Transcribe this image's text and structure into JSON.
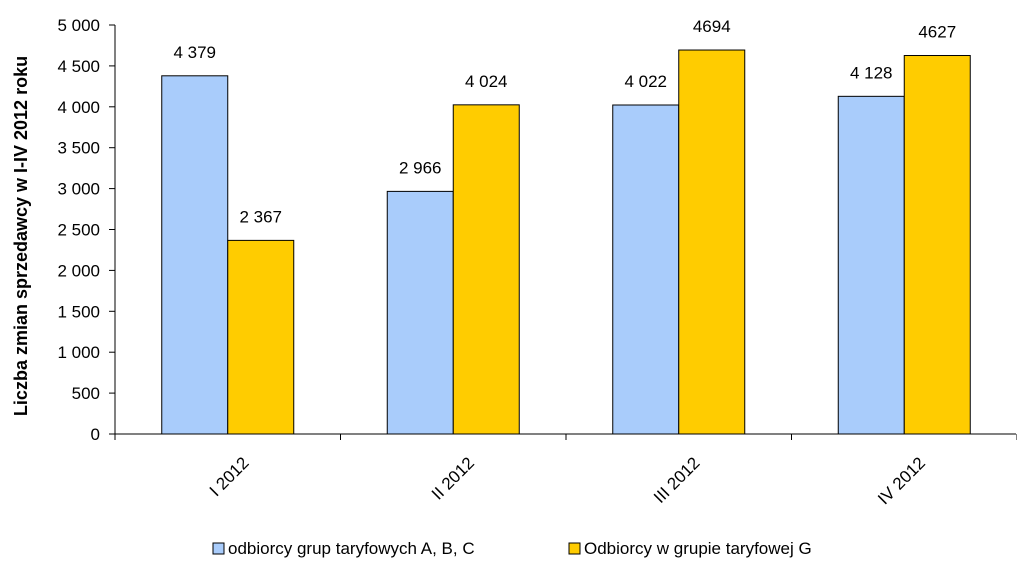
{
  "chart_data": {
    "type": "bar",
    "categories": [
      "I 2012",
      "II 2012",
      "III 2012",
      "IV 2012"
    ],
    "series": [
      {
        "name": "odbiorcy grup taryfowych A, B, C",
        "values": [
          4379,
          2966,
          4022,
          4128
        ],
        "labels": [
          "4 379",
          "2 966",
          "4 022",
          "4 128"
        ],
        "color": "#a9ccfb"
      },
      {
        "name": "Odbiorcy w grupie taryfowej G",
        "values": [
          2367,
          4024,
          4694,
          4627
        ],
        "labels": [
          "2 367",
          "4 024",
          "4694",
          "4627"
        ],
        "color": "#ffcc00"
      }
    ],
    "ylabel": "Liczba zmian sprzedawcy w I-IV 2012 roku",
    "xlabel": "",
    "ylim": [
      0,
      5000
    ],
    "yticks": [
      0,
      500,
      1000,
      1500,
      2000,
      2500,
      3000,
      3500,
      4000,
      4500,
      5000
    ],
    "ytick_labels": [
      "0",
      "500",
      "1 000",
      "1 500",
      "2 000",
      "2 500",
      "3 000",
      "3 500",
      "4 000",
      "4 500",
      "5 000"
    ],
    "grid": false,
    "legend_position": "bottom"
  }
}
